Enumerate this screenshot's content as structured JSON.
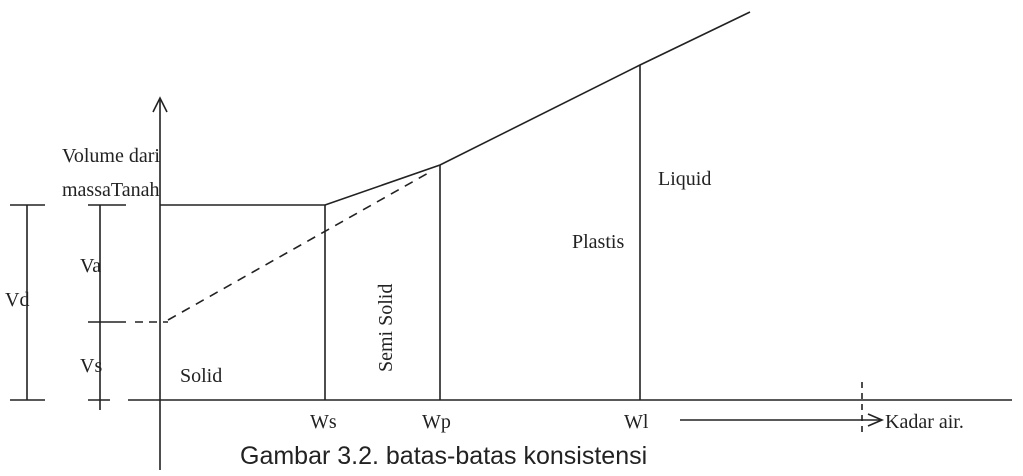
{
  "axis": {
    "y_label": [
      "Volume dari",
      "massaTanah"
    ],
    "x_label": "Kadar air."
  },
  "volumes": {
    "total": "Vd",
    "air": "Va",
    "solid": "Vs"
  },
  "states": {
    "solid": "Solid",
    "semi_solid": "Semi Solid",
    "plastic": "Plastis",
    "liquid": "Liquid"
  },
  "limits": {
    "shrinkage": "Ws",
    "plastic": "Wp",
    "liquid": "Wl"
  },
  "caption": "Gambar 3.2. batas-batas konsistensi"
}
